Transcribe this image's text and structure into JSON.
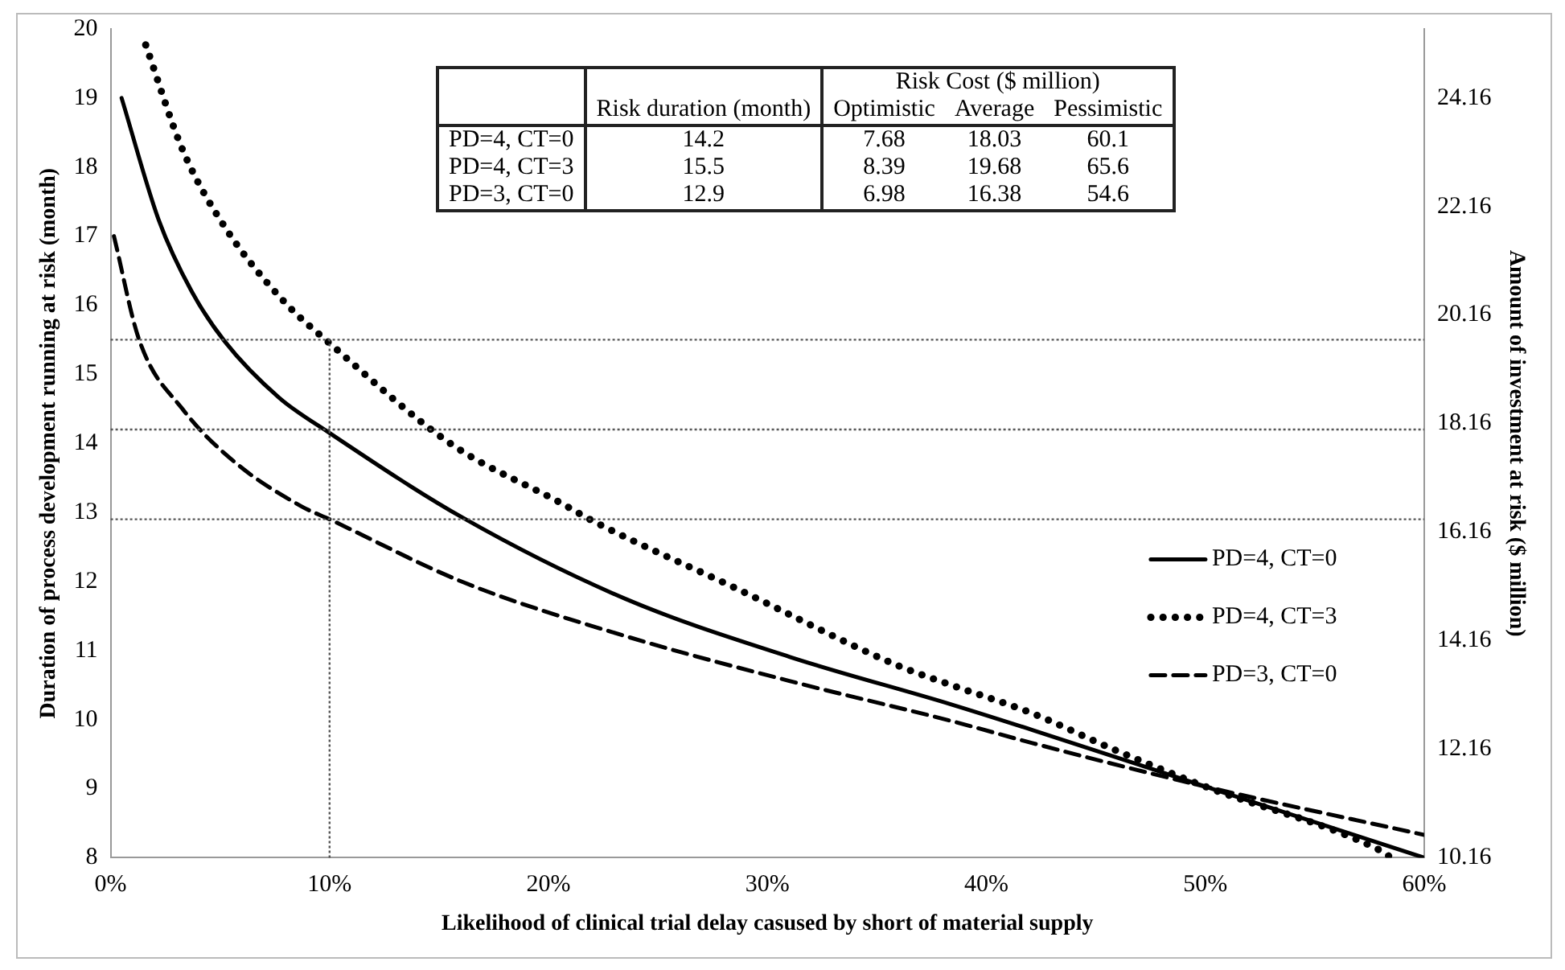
{
  "chart_data": {
    "type": "line",
    "xlabel": "Likelihood of clinical trial delay casused by short of material supply",
    "ylabel": "Duration of process development running at risk (month)",
    "y2label": "Amount of investment at risk ($ million)",
    "xlim": [
      0,
      60
    ],
    "xticks": [
      {
        "value": 0,
        "label": "0%"
      },
      {
        "value": 10,
        "label": "10%"
      },
      {
        "value": 20,
        "label": "20%"
      },
      {
        "value": 30,
        "label": "30%"
      },
      {
        "value": 40,
        "label": "40%"
      },
      {
        "value": 50,
        "label": "50%"
      },
      {
        "value": 60,
        "label": "60%"
      }
    ],
    "ylim": [
      8,
      20
    ],
    "yticks": [
      8,
      9,
      10,
      11,
      12,
      13,
      14,
      15,
      16,
      17,
      18,
      19,
      20
    ],
    "y2lim": [
      10.16,
      25.43
    ],
    "y2ticks": [
      10.16,
      12.16,
      14.16,
      16.16,
      18.16,
      20.16,
      22.16,
      24.16
    ],
    "grid": false,
    "legend": "right",
    "marker": "none",
    "series": [
      {
        "name": "PD=4, CT=0",
        "color": "#000000",
        "line_style": "solid",
        "x": [
          0.5,
          2.2,
          3.7,
          5.2,
          7.7,
          10,
          16.1,
          23.5,
          31,
          38.4,
          42.1,
          50,
          60
        ],
        "values": [
          19,
          17.23,
          16.2,
          15.48,
          14.66,
          14.15,
          12.92,
          11.75,
          10.91,
          10.22,
          9.85,
          9.03,
          8
        ]
      },
      {
        "name": "PD=4, CT=3",
        "color": "#000000",
        "line_style": "dotted",
        "x": [
          1.6,
          3.3,
          5.2,
          7.9,
          10,
          15.6,
          20.6,
          22,
          28.5,
          35.9,
          38.4,
          42.1,
          45.8,
          50,
          57.9,
          58.5
        ],
        "values": [
          19.77,
          18.24,
          17.14,
          16.06,
          15.45,
          13.98,
          13.13,
          12.88,
          11.91,
          10.79,
          10.5,
          10.09,
          9.57,
          9.03,
          8.12,
          8
        ]
      },
      {
        "name": "PD=3, CT=0",
        "color": "#000000",
        "line_style": "dashed",
        "x": [
          0.15,
          1.3,
          3.3,
          5.7,
          8.7,
          10,
          16.1,
          23.5,
          31,
          38.4,
          42.1,
          50,
          60
        ],
        "values": [
          17,
          15.5,
          14.49,
          13.72,
          13.09,
          12.9,
          11.99,
          11.21,
          10.56,
          9.98,
          9.66,
          9.03,
          8.33
        ]
      }
    ],
    "ref_lines": [
      {
        "axis": "x",
        "value": 10,
        "line_style": "dotted",
        "color": "#555555"
      },
      {
        "axis": "y",
        "value": 15.5,
        "line_style": "dotted",
        "color": "#555555"
      },
      {
        "axis": "y",
        "value": 14.2,
        "line_style": "dotted",
        "color": "#555555"
      },
      {
        "axis": "y",
        "value": 12.9,
        "line_style": "dotted",
        "color": "#555555"
      }
    ],
    "annotations": [
      "\t\tRisk Cost ($ million)",
      "\tRisk duration (month)\tOptimistic\tAverage\tPessimistic",
      "PD=4, CT=0\t14.2\t7.68\t18.03\t60.1",
      "PD=4, CT=3\t15.5\t8.39\t19.68\t65.6",
      "PD=3, CT=0\t12.9\t6.98\t16.38\t54.6"
    ]
  }
}
